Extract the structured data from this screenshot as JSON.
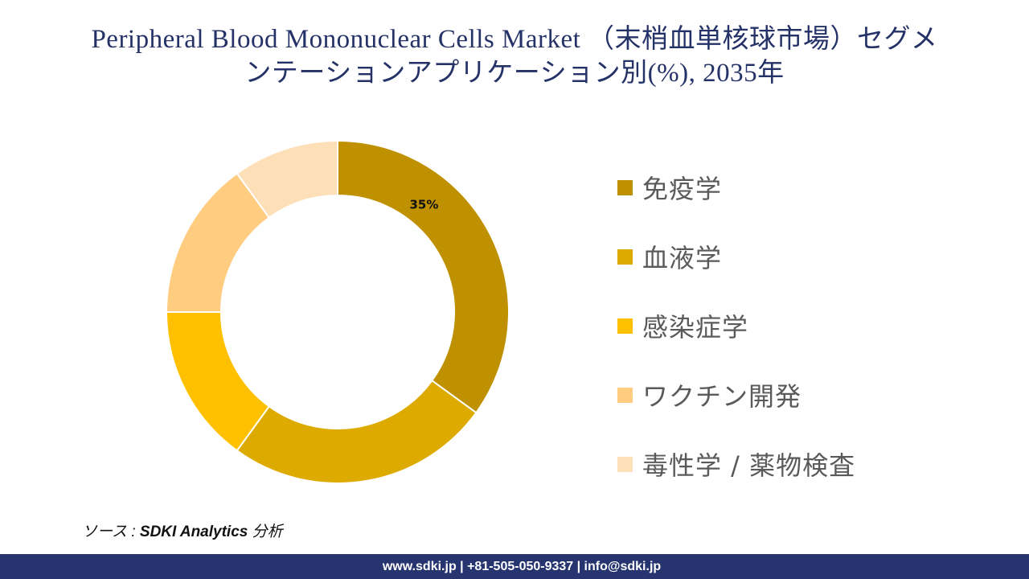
{
  "title": {
    "line1": "Peripheral Blood Mononuclear Cells Market （末梢血単核球市場）セグメ",
    "line2": "ンテーションアプリケーション別(%), 2035年"
  },
  "chart_data": {
    "type": "pie",
    "subtype": "donut",
    "title": "Peripheral Blood Mononuclear Cells Market （末梢血単核球市場）セグメンテーションアプリケーション別(%), 2035年",
    "categories": [
      "免疫学",
      "血液学",
      "感染症学",
      "ワクチン開発",
      "毒性学 / 薬物検査"
    ],
    "values": [
      35,
      25,
      15,
      15,
      10
    ],
    "colors": [
      "#BF9000",
      "#DDAA00",
      "#FFC000",
      "#FFCC80",
      "#FDE0B8"
    ],
    "data_labels": [
      "35%",
      "",
      "",
      "",
      ""
    ],
    "start_angle": 0,
    "direction": "clockwise",
    "legend_position": "right",
    "xlabel": "",
    "ylabel": ""
  },
  "legend": {
    "items": [
      {
        "label": "免疫学",
        "color": "#BF9000"
      },
      {
        "label": "血液学",
        "color": "#DDAA00"
      },
      {
        "label": "感染症学",
        "color": "#FFC000"
      },
      {
        "label": "ワクチン開発",
        "color": "#FFCC80"
      },
      {
        "label": "毒性学 / 薬物検査",
        "color": "#FDE0B8"
      }
    ]
  },
  "source": {
    "prefix": "ソース : ",
    "brand": "SDKI Analytics",
    "suffix": " 分析"
  },
  "footer": {
    "text": "www.sdki.jp | +81-505-050-9337 | info@sdki.jp",
    "background": "#263470"
  }
}
